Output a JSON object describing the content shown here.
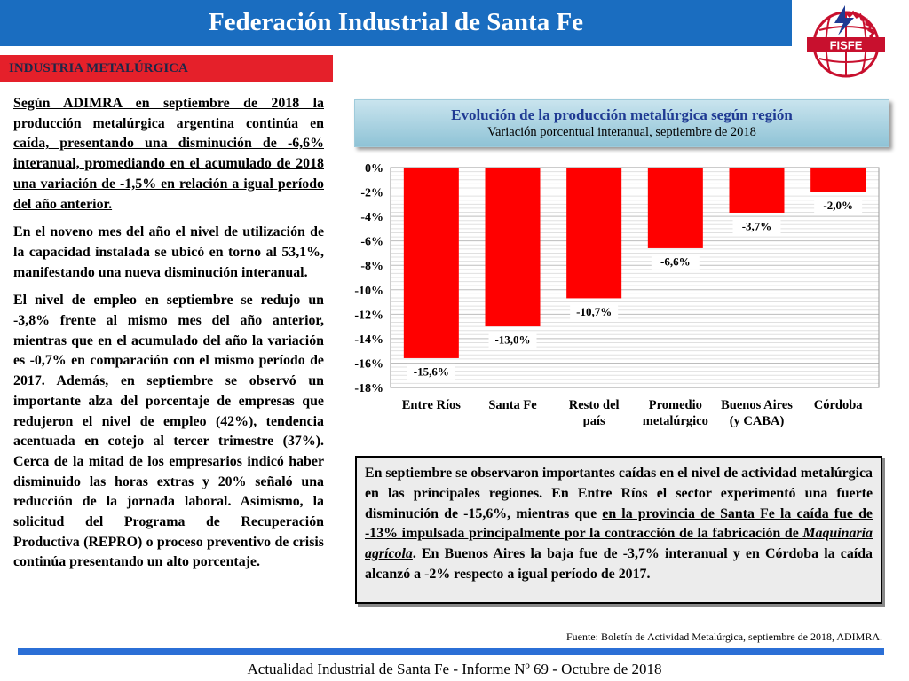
{
  "header": {
    "title": "Federación Industrial de Santa Fe",
    "logo_text": "FISFE"
  },
  "section": {
    "tag": "INDUSTRIA METALÚRGICA"
  },
  "left_text": {
    "p1": "Según ADIMRA en septiembre de 2018 la producción metalúrgica argentina continúa en caída, presentando una disminución de -6,6% interanual, promediando en el acumulado de 2018 una variación de -1,5% en relación a igual período del año anterior.",
    "p2": "En el noveno mes del año el nivel de utilización de la capacidad instalada se ubicó en torno al 53,1%, manifestando una nueva disminución interanual.",
    "p3": "El nivel de empleo en septiembre se redujo un -3,8% frente al mismo mes del año anterior, mientras que en el acumulado del año la variación es -0,7% en comparación con el mismo período de 2017. Además, en septiembre se observó un importante alza del porcentaje de empresas que redujeron el nivel de empleo (42%), tendencia acentuada en cotejo al tercer trimestre (37%). Cerca de la mitad de los empresarios indicó haber disminuido las horas extras y 20% señaló una reducción de la jornada laboral. Asimismo, la solicitud del Programa de Recuperación Productiva (REPRO) o proceso preventivo de crisis continúa presentando un alto porcentaje."
  },
  "chart_head": {
    "title": "Evolución de la producción metalúrgica según región",
    "subtitle": "Variación porcentual interanual, septiembre de 2018"
  },
  "chart_data": {
    "type": "bar",
    "title": "Evolución de la producción metalúrgica según región",
    "subtitle": "Variación porcentual interanual, septiembre de 2018",
    "categories": [
      "Entre Ríos",
      "Santa Fe",
      "Resto del país",
      "Promedio metalúrgico",
      "Buenos Aires (y CABA)",
      "Córdoba"
    ],
    "category_lines": [
      [
        "Entre Ríos"
      ],
      [
        "Santa Fe"
      ],
      [
        "Resto del",
        "país"
      ],
      [
        "Promedio",
        "metalúrgico"
      ],
      [
        "Buenos Aires",
        "(y CABA)"
      ],
      [
        "Córdoba"
      ]
    ],
    "values": [
      -15.6,
      -13.0,
      -10.7,
      -6.6,
      -3.7,
      -2.0
    ],
    "value_labels": [
      "-15,6%",
      "-13,0%",
      "-10,7%",
      "-6,6%",
      "-3,7%",
      "-2,0%"
    ],
    "ylim": [
      -18,
      0
    ],
    "yticks": [
      0,
      -2,
      -4,
      -6,
      -8,
      -10,
      -12,
      -14,
      -16,
      -18
    ],
    "ytick_labels": [
      "0%",
      "-2%",
      "-4%",
      "-6%",
      "-8%",
      "-10%",
      "-12%",
      "-14%",
      "-16%",
      "-18%"
    ],
    "grid": true,
    "bar_color": "#ff0000",
    "xlabel": "",
    "ylabel": ""
  },
  "note": {
    "part1": "En septiembre se observaron importantes caídas en el nivel de actividad metalúrgica en las principales regiones. En Entre Ríos el sector experimentó una fuerte disminución de -15,6%, mientras que ",
    "part2_underlined": "en la provincia de Santa Fe la caída fue de -13% impulsada principalmente por la contracción de la fabricación de ",
    "part3_italic_underlined": "Maquinaria agrícola",
    "part4": ". En Buenos Aires la baja fue de -3,7% interanual y en Córdoba la caída alcanzó a -2% respecto a igual período de 2017."
  },
  "source": "Fuente: Boletín de Actividad Metalúrgica, septiembre de 2018, ADIMRA.",
  "footer": "Actualidad Industrial de Santa Fe - Informe Nº 69 - Octubre de 2018",
  "colors": {
    "banner_blue": "#1a6dc0",
    "tag_red": "#e5202a",
    "bar_red": "#ff0000",
    "footer_blue": "#2b6fd6"
  }
}
